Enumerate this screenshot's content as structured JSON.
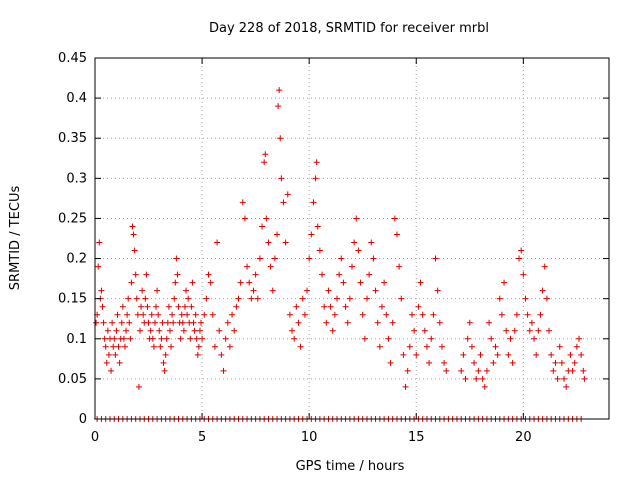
{
  "chart_data": {
    "type": "scatter",
    "title": "Day 228 of 2018, SRMTID for receiver mrbl",
    "xlabel": "GPS time / hours",
    "ylabel": "SRMTID / TECUs",
    "xlim": [
      0,
      24
    ],
    "ylim": [
      0,
      0.45
    ],
    "grid": true,
    "marker": "+",
    "color": "#e00000",
    "xticks": [
      {
        "value": 0,
        "label": "0"
      },
      {
        "value": 5,
        "label": "5"
      },
      {
        "value": 10,
        "label": "10"
      },
      {
        "value": 15,
        "label": "15"
      },
      {
        "value": 20,
        "label": "20"
      }
    ],
    "yticks": [
      {
        "value": 0,
        "label": "0"
      },
      {
        "value": 0.05,
        "label": "0.05"
      },
      {
        "value": 0.1,
        "label": "0.1"
      },
      {
        "value": 0.15,
        "label": "0.15"
      },
      {
        "value": 0.2,
        "label": "0.2"
      },
      {
        "value": 0.25,
        "label": "0.25"
      },
      {
        "value": 0.3,
        "label": "0.3"
      },
      {
        "value": 0.35,
        "label": "0.35"
      },
      {
        "value": 0.4,
        "label": "0.4"
      },
      {
        "value": 0.45,
        "label": "0.45"
      }
    ],
    "series": [
      {
        "name": "SRMTID",
        "points": [
          [
            0.05,
            0.12
          ],
          [
            0.1,
            0.13
          ],
          [
            0.15,
            0.19
          ],
          [
            0.2,
            0.22
          ],
          [
            0.25,
            0.15
          ],
          [
            0.3,
            0.16
          ],
          [
            0.35,
            0.14
          ],
          [
            0.4,
            0.12
          ],
          [
            0.45,
            0.1
          ],
          [
            0.5,
            0.09
          ],
          [
            0.55,
            0.07
          ],
          [
            0.6,
            0.11
          ],
          [
            0.65,
            0.08
          ],
          [
            0.7,
            0.1
          ],
          [
            0.75,
            0.06
          ],
          [
            0.8,
            0.12
          ],
          [
            0.85,
            0.09
          ],
          [
            0.9,
            0.1
          ],
          [
            0.95,
            0.08
          ],
          [
            1.0,
            0.11
          ],
          [
            1.05,
            0.13
          ],
          [
            1.1,
            0.09
          ],
          [
            1.15,
            0.07
          ],
          [
            1.2,
            0.1
          ],
          [
            1.25,
            0.12
          ],
          [
            1.3,
            0.14
          ],
          [
            1.35,
            0.1
          ],
          [
            1.4,
            0.09
          ],
          [
            1.45,
            0.11
          ],
          [
            1.5,
            0.13
          ],
          [
            1.55,
            0.15
          ],
          [
            1.6,
            0.12
          ],
          [
            1.65,
            0.1
          ],
          [
            1.7,
            0.17
          ],
          [
            1.75,
            0.24
          ],
          [
            1.8,
            0.23
          ],
          [
            1.85,
            0.21
          ],
          [
            1.9,
            0.18
          ],
          [
            1.95,
            0.15
          ],
          [
            2.0,
            0.13
          ],
          [
            2.05,
            0.04
          ],
          [
            2.1,
            0.11
          ],
          [
            2.15,
            0.14
          ],
          [
            2.2,
            0.16
          ],
          [
            2.25,
            0.13
          ],
          [
            2.3,
            0.12
          ],
          [
            2.35,
            0.15
          ],
          [
            2.4,
            0.18
          ],
          [
            2.45,
            0.14
          ],
          [
            2.5,
            0.12
          ],
          [
            2.55,
            0.1
          ],
          [
            2.6,
            0.11
          ],
          [
            2.65,
            0.13
          ],
          [
            2.7,
            0.1
          ],
          [
            2.75,
            0.09
          ],
          [
            2.8,
            0.12
          ],
          [
            2.85,
            0.14
          ],
          [
            2.9,
            0.16
          ],
          [
            2.95,
            0.13
          ],
          [
            3.0,
            0.11
          ],
          [
            3.05,
            0.09
          ],
          [
            3.1,
            0.1
          ],
          [
            3.15,
            0.12
          ],
          [
            3.2,
            0.07
          ],
          [
            3.25,
            0.06
          ],
          [
            3.3,
            0.08
          ],
          [
            3.35,
            0.1
          ],
          [
            3.4,
            0.12
          ],
          [
            3.45,
            0.14
          ],
          [
            3.5,
            0.11
          ],
          [
            3.55,
            0.09
          ],
          [
            3.6,
            0.13
          ],
          [
            3.65,
            0.12
          ],
          [
            3.7,
            0.15
          ],
          [
            3.75,
            0.17
          ],
          [
            3.8,
            0.2
          ],
          [
            3.85,
            0.18
          ],
          [
            3.9,
            0.14
          ],
          [
            3.95,
            0.12
          ],
          [
            4.0,
            0.1
          ],
          [
            4.05,
            0.13
          ],
          [
            4.1,
            0.12
          ],
          [
            4.15,
            0.11
          ],
          [
            4.2,
            0.14
          ],
          [
            4.25,
            0.16
          ],
          [
            4.3,
            0.13
          ],
          [
            4.35,
            0.15
          ],
          [
            4.4,
            0.12
          ],
          [
            4.45,
            0.1
          ],
          [
            4.5,
            0.14
          ],
          [
            4.55,
            0.17
          ],
          [
            4.6,
            0.12
          ],
          [
            4.65,
            0.11
          ],
          [
            4.7,
            0.13
          ],
          [
            4.75,
            0.1
          ],
          [
            4.8,
            0.08
          ],
          [
            4.85,
            0.09
          ],
          [
            4.9,
            0.11
          ],
          [
            4.95,
            0.12
          ],
          [
            5.0,
            0.1
          ],
          [
            5.1,
            0.13
          ],
          [
            5.2,
            0.15
          ],
          [
            5.3,
            0.18
          ],
          [
            5.4,
            0.17
          ],
          [
            5.5,
            0.13
          ],
          [
            5.6,
            0.09
          ],
          [
            5.7,
            0.22
          ],
          [
            5.8,
            0.11
          ],
          [
            5.9,
            0.08
          ],
          [
            6.0,
            0.06
          ],
          [
            6.1,
            0.1
          ],
          [
            6.2,
            0.12
          ],
          [
            6.3,
            0.09
          ],
          [
            6.4,
            0.13
          ],
          [
            6.5,
            0.11
          ],
          [
            6.6,
            0.14
          ],
          [
            6.7,
            0.15
          ],
          [
            6.8,
            0.17
          ],
          [
            6.9,
            0.27
          ],
          [
            7.0,
            0.25
          ],
          [
            7.1,
            0.19
          ],
          [
            7.2,
            0.17
          ],
          [
            7.3,
            0.15
          ],
          [
            7.4,
            0.16
          ],
          [
            7.5,
            0.18
          ],
          [
            7.6,
            0.15
          ],
          [
            7.7,
            0.2
          ],
          [
            7.8,
            0.24
          ],
          [
            7.9,
            0.32
          ],
          [
            7.95,
            0.33
          ],
          [
            8.0,
            0.25
          ],
          [
            8.1,
            0.22
          ],
          [
            8.2,
            0.19
          ],
          [
            8.3,
            0.16
          ],
          [
            8.4,
            0.2
          ],
          [
            8.5,
            0.23
          ],
          [
            8.55,
            0.39
          ],
          [
            8.6,
            0.41
          ],
          [
            8.65,
            0.35
          ],
          [
            8.7,
            0.3
          ],
          [
            8.8,
            0.27
          ],
          [
            8.9,
            0.22
          ],
          [
            9.0,
            0.28
          ],
          [
            9.1,
            0.13
          ],
          [
            9.2,
            0.11
          ],
          [
            9.3,
            0.1
          ],
          [
            9.4,
            0.14
          ],
          [
            9.5,
            0.12
          ],
          [
            9.6,
            0.09
          ],
          [
            9.7,
            0.15
          ],
          [
            9.8,
            0.13
          ],
          [
            9.9,
            0.16
          ],
          [
            10.0,
            0.2
          ],
          [
            10.1,
            0.23
          ],
          [
            10.2,
            0.27
          ],
          [
            10.3,
            0.3
          ],
          [
            10.35,
            0.32
          ],
          [
            10.4,
            0.24
          ],
          [
            10.5,
            0.21
          ],
          [
            10.6,
            0.18
          ],
          [
            10.7,
            0.14
          ],
          [
            10.8,
            0.12
          ],
          [
            10.9,
            0.16
          ],
          [
            11.0,
            0.14
          ],
          [
            11.1,
            0.11
          ],
          [
            11.2,
            0.13
          ],
          [
            11.3,
            0.15
          ],
          [
            11.4,
            0.18
          ],
          [
            11.5,
            0.2
          ],
          [
            11.6,
            0.17
          ],
          [
            11.7,
            0.14
          ],
          [
            11.8,
            0.12
          ],
          [
            11.9,
            0.15
          ],
          [
            12.0,
            0.19
          ],
          [
            12.1,
            0.22
          ],
          [
            12.2,
            0.25
          ],
          [
            12.3,
            0.21
          ],
          [
            12.4,
            0.17
          ],
          [
            12.5,
            0.13
          ],
          [
            12.6,
            0.1
          ],
          [
            12.7,
            0.15
          ],
          [
            12.8,
            0.18
          ],
          [
            12.9,
            0.22
          ],
          [
            13.0,
            0.2
          ],
          [
            13.1,
            0.16
          ],
          [
            13.2,
            0.12
          ],
          [
            13.3,
            0.09
          ],
          [
            13.4,
            0.14
          ],
          [
            13.5,
            0.17
          ],
          [
            13.6,
            0.13
          ],
          [
            13.7,
            0.1
          ],
          [
            13.8,
            0.07
          ],
          [
            13.9,
            0.12
          ],
          [
            14.0,
            0.25
          ],
          [
            14.1,
            0.23
          ],
          [
            14.2,
            0.19
          ],
          [
            14.3,
            0.15
          ],
          [
            14.4,
            0.08
          ],
          [
            14.5,
            0.04
          ],
          [
            14.6,
            0.06
          ],
          [
            14.7,
            0.09
          ],
          [
            14.8,
            0.13
          ],
          [
            14.9,
            0.11
          ],
          [
            15.0,
            0.08
          ],
          [
            15.1,
            0.14
          ],
          [
            15.2,
            0.17
          ],
          [
            15.3,
            0.13
          ],
          [
            15.4,
            0.11
          ],
          [
            15.5,
            0.09
          ],
          [
            15.6,
            0.07
          ],
          [
            15.7,
            0.1
          ],
          [
            15.8,
            0.13
          ],
          [
            15.9,
            0.2
          ],
          [
            16.0,
            0.16
          ],
          [
            16.1,
            0.12
          ],
          [
            16.2,
            0.09
          ],
          [
            16.3,
            0.07
          ],
          [
            16.4,
            0.06
          ],
          [
            17.1,
            0.06
          ],
          [
            17.2,
            0.08
          ],
          [
            17.3,
            0.05
          ],
          [
            17.4,
            0.1
          ],
          [
            17.5,
            0.12
          ],
          [
            17.6,
            0.09
          ],
          [
            17.7,
            0.07
          ],
          [
            17.8,
            0.05
          ],
          [
            17.9,
            0.06
          ],
          [
            18.0,
            0.08
          ],
          [
            18.1,
            0.05
          ],
          [
            18.2,
            0.04
          ],
          [
            18.3,
            0.06
          ],
          [
            18.4,
            0.12
          ],
          [
            18.5,
            0.1
          ],
          [
            18.6,
            0.07
          ],
          [
            18.7,
            0.09
          ],
          [
            18.8,
            0.08
          ],
          [
            18.9,
            0.15
          ],
          [
            19.0,
            0.13
          ],
          [
            19.1,
            0.17
          ],
          [
            19.2,
            0.11
          ],
          [
            19.3,
            0.08
          ],
          [
            19.4,
            0.1
          ],
          [
            19.5,
            0.07
          ],
          [
            19.6,
            0.11
          ],
          [
            19.7,
            0.13
          ],
          [
            19.8,
            0.2
          ],
          [
            19.9,
            0.21
          ],
          [
            20.0,
            0.18
          ],
          [
            20.1,
            0.15
          ],
          [
            20.2,
            0.13
          ],
          [
            20.3,
            0.11
          ],
          [
            20.4,
            0.12
          ],
          [
            20.5,
            0.1
          ],
          [
            20.6,
            0.08
          ],
          [
            20.7,
            0.11
          ],
          [
            20.8,
            0.13
          ],
          [
            20.9,
            0.16
          ],
          [
            21.0,
            0.19
          ],
          [
            21.1,
            0.15
          ],
          [
            21.2,
            0.11
          ],
          [
            21.3,
            0.08
          ],
          [
            21.4,
            0.06
          ],
          [
            21.5,
            0.07
          ],
          [
            21.6,
            0.05
          ],
          [
            21.7,
            0.09
          ],
          [
            21.8,
            0.07
          ],
          [
            21.9,
            0.05
          ],
          [
            22.0,
            0.04
          ],
          [
            22.1,
            0.06
          ],
          [
            22.2,
            0.08
          ],
          [
            22.3,
            0.06
          ],
          [
            22.4,
            0.07
          ],
          [
            22.5,
            0.09
          ],
          [
            22.6,
            0.1
          ],
          [
            22.7,
            0.08
          ],
          [
            22.8,
            0.06
          ],
          [
            22.85,
            0.05
          ]
        ],
        "zero_line_x": [
          0.1,
          0.3,
          0.5,
          0.7,
          0.9,
          1.1,
          1.3,
          1.5,
          1.7,
          1.9,
          2.1,
          2.3,
          2.5,
          2.7,
          2.9,
          3.1,
          3.3,
          3.5,
          3.7,
          3.9,
          4.1,
          4.3,
          4.5,
          4.7,
          4.9,
          5.1,
          5.3,
          5.5,
          5.7,
          5.9,
          6.1,
          6.3,
          6.5,
          6.7,
          6.9,
          7.1,
          7.3,
          7.5,
          7.7,
          7.9,
          8.1,
          8.3,
          8.5,
          8.7,
          8.9,
          9.1,
          9.3,
          9.5,
          9.7,
          9.9,
          10.1,
          10.3,
          10.5,
          10.7,
          10.9,
          11.1,
          11.3,
          11.5,
          11.7,
          11.9,
          12.1,
          12.3,
          12.5,
          12.7,
          12.9,
          13.1,
          13.3,
          13.5,
          13.7,
          13.9,
          14.1,
          14.3,
          14.5,
          14.7,
          14.9,
          15.1,
          15.3,
          15.5,
          15.7,
          15.9,
          16.1,
          16.3,
          16.5,
          16.7,
          16.9,
          17.1,
          17.3,
          17.5,
          17.7,
          17.9,
          18.1,
          18.3,
          18.5,
          18.7,
          18.9,
          19.1,
          19.3,
          19.5,
          19.7,
          19.9,
          20.1,
          20.3,
          20.5,
          20.7,
          20.9,
          21.1,
          21.3,
          21.5,
          21.7,
          21.9,
          22.1,
          22.3,
          22.5,
          22.7
        ]
      }
    ]
  }
}
